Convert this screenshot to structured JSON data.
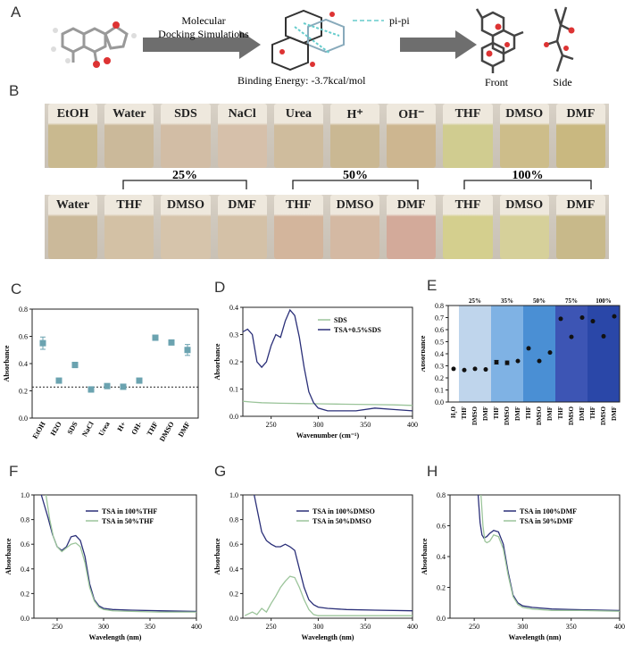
{
  "panels": {
    "A": "A",
    "B": "B",
    "C": "C",
    "D": "D",
    "E": "E",
    "F": "F",
    "G": "G",
    "H": "H"
  },
  "panelA": {
    "arrow1_line1": "Molecular",
    "arrow1_line2": "Docking Simulations",
    "pipi": "pi-pi",
    "binding": "Binding Energy:  -3.7kcal/mol",
    "front": "Front",
    "side": "Side"
  },
  "panelB": {
    "row1": [
      "EtOH",
      "Water",
      "SDS",
      "NaCl",
      "Urea",
      "H⁺",
      "OH⁻",
      "THF",
      "DMSO",
      "DMF"
    ],
    "row1_colors": [
      "#c9b98f",
      "#cbb99a",
      "#d2bda5",
      "#d6c0aa",
      "#cfbc9d",
      "#cab893",
      "#cdb690",
      "#d0cc90",
      "#cdbd8a",
      "#c9b880"
    ],
    "row2": [
      "Water",
      "THF",
      "DMSO",
      "DMF",
      "THF",
      "DMSO",
      "DMF",
      "THF",
      "DMSO",
      "DMF"
    ],
    "row2_colors": [
      "#cbb99a",
      "#d3c1a5",
      "#d6c4ab",
      "#d4c1a7",
      "#d3b59c",
      "#d4b9a3",
      "#d3aa9a",
      "#d4cf8e",
      "#d6d09a",
      "#c8b98a"
    ],
    "groups": [
      "25%",
      "50%",
      "100%"
    ]
  },
  "chart_data": [
    {
      "id": "C",
      "type": "scatter",
      "ylabel": "Absorbance",
      "ylim": [
        0,
        0.8
      ],
      "yticks": [
        "0.0",
        "0.2",
        "0.4",
        "0.6",
        "0.8"
      ],
      "categories": [
        "EtOH",
        "H2O",
        "SDS",
        "NaCl",
        "Urea",
        "H+",
        "OH-",
        "THF",
        "DMSO",
        "DMF"
      ],
      "values": [
        0.55,
        0.275,
        0.39,
        0.21,
        0.235,
        0.23,
        0.275,
        0.59,
        0.555,
        0.5
      ],
      "errors": [
        0.045,
        0.01,
        0.02,
        0.02,
        0.01,
        0.01,
        0.01,
        0.01,
        0.01,
        0.04
      ],
      "baseline": 0.228,
      "color": "#6ba3b0"
    },
    {
      "id": "D",
      "type": "line",
      "xlabel": "Wavenumber (cm⁻¹)",
      "ylabel": "Absorbance",
      "xlim": [
        220,
        400
      ],
      "ylim": [
        0,
        0.4
      ],
      "xticks": [
        "250",
        "300",
        "350",
        "400"
      ],
      "yticks": [
        "0.0",
        "0.1",
        "0.2",
        "0.3",
        "0.4"
      ],
      "series": [
        {
          "name": "SDS",
          "color": "#9bc49a",
          "x": [
            220,
            230,
            240,
            260,
            280,
            300,
            320,
            340,
            360,
            380,
            400
          ],
          "y": [
            0.055,
            0.052,
            0.05,
            0.048,
            0.047,
            0.046,
            0.045,
            0.044,
            0.043,
            0.042,
            0.04
          ]
        },
        {
          "name": "TSA+0.5%SDS",
          "color": "#2a2f78",
          "x": [
            220,
            225,
            230,
            235,
            240,
            245,
            250,
            255,
            260,
            265,
            270,
            275,
            280,
            285,
            290,
            295,
            300,
            310,
            320,
            340,
            360,
            380,
            400
          ],
          "y": [
            0.31,
            0.32,
            0.3,
            0.2,
            0.18,
            0.2,
            0.26,
            0.3,
            0.29,
            0.35,
            0.39,
            0.37,
            0.29,
            0.18,
            0.09,
            0.05,
            0.03,
            0.02,
            0.02,
            0.02,
            0.03,
            0.025,
            0.02
          ]
        }
      ]
    },
    {
      "id": "E",
      "type": "scatter",
      "ylabel": "Absorbance",
      "ylim": [
        0,
        0.8
      ],
      "yticks": [
        "0.0",
        "0.1",
        "0.2",
        "0.3",
        "0.4",
        "0.5",
        "0.6",
        "0.7",
        "0.8"
      ],
      "categories": [
        "H₂O",
        "THF",
        "DMSO",
        "DMF",
        "THF",
        "DMSO",
        "DMF",
        "THF",
        "DMSO",
        "DMF",
        "THF",
        "DMSO",
        "DMF",
        "THF",
        "DMSO",
        "DMF"
      ],
      "values": [
        0.275,
        0.265,
        0.275,
        0.27,
        0.33,
        0.325,
        0.34,
        0.445,
        0.34,
        0.41,
        0.69,
        0.54,
        0.7,
        0.67,
        0.545,
        0.71
      ],
      "errors": [
        0,
        0,
        0,
        0,
        0.015,
        0.015,
        0,
        0,
        0,
        0,
        0,
        0,
        0,
        0,
        0,
        0
      ],
      "groups": [
        "25%",
        "35%",
        "50%",
        "75%",
        "100%"
      ],
      "group_colors": [
        "#bfd5ec",
        "#7fb2e4",
        "#4a8fd4",
        "#3d55b4",
        "#2a47a8"
      ]
    },
    {
      "id": "F",
      "type": "line",
      "xlabel": "Wavelength (nm)",
      "ylabel": "Absorbance",
      "xlim": [
        225,
        400
      ],
      "ylim": [
        0,
        1.0
      ],
      "xticks": [
        "250",
        "300",
        "350",
        "400"
      ],
      "yticks": [
        "0.0",
        "0.2",
        "0.4",
        "0.6",
        "0.8",
        "1.0"
      ],
      "series": [
        {
          "name": "TSA in 100%THF",
          "color": "#2a2f78",
          "x": [
            233,
            240,
            245,
            250,
            255,
            260,
            265,
            270,
            275,
            280,
            285,
            290,
            295,
            300,
            310,
            330,
            360,
            400
          ],
          "y": [
            1.0,
            0.82,
            0.68,
            0.58,
            0.55,
            0.58,
            0.66,
            0.67,
            0.63,
            0.5,
            0.28,
            0.15,
            0.1,
            0.08,
            0.07,
            0.065,
            0.06,
            0.055
          ]
        },
        {
          "name": "TSA in 50%THF",
          "color": "#9bc49a",
          "x": [
            238,
            242,
            246,
            250,
            255,
            260,
            265,
            270,
            275,
            280,
            285,
            290,
            295,
            300,
            310,
            330,
            360,
            400
          ],
          "y": [
            1.0,
            0.8,
            0.66,
            0.58,
            0.54,
            0.57,
            0.6,
            0.61,
            0.58,
            0.45,
            0.25,
            0.14,
            0.09,
            0.07,
            0.06,
            0.055,
            0.05,
            0.05
          ]
        }
      ]
    },
    {
      "id": "G",
      "type": "line",
      "xlabel": "Wavelength (nm)",
      "ylabel": "Absorbance",
      "xlim": [
        220,
        400
      ],
      "ylim": [
        0,
        1.0
      ],
      "xticks": [
        "250",
        "300",
        "350",
        "400"
      ],
      "yticks": [
        "0.0",
        "0.2",
        "0.4",
        "0.6",
        "0.8",
        "1.0"
      ],
      "series": [
        {
          "name": "TSA in 100%DMSO",
          "color": "#2a2f78",
          "x": [
            232,
            236,
            240,
            245,
            250,
            255,
            260,
            265,
            270,
            275,
            280,
            285,
            290,
            295,
            300,
            310,
            330,
            360,
            400
          ],
          "y": [
            1.0,
            0.85,
            0.7,
            0.63,
            0.6,
            0.58,
            0.58,
            0.6,
            0.58,
            0.55,
            0.4,
            0.25,
            0.15,
            0.11,
            0.09,
            0.08,
            0.07,
            0.065,
            0.06
          ]
        },
        {
          "name": "TSA in 50%DMSO",
          "color": "#9bc49a",
          "x": [
            222,
            230,
            235,
            240,
            245,
            250,
            255,
            260,
            265,
            270,
            275,
            280,
            285,
            290,
            295,
            300,
            310,
            330,
            360,
            400
          ],
          "y": [
            0.02,
            0.05,
            0.03,
            0.08,
            0.05,
            0.12,
            0.18,
            0.25,
            0.3,
            0.34,
            0.33,
            0.25,
            0.15,
            0.07,
            0.03,
            0.02,
            0.02,
            0.02,
            0.02,
            0.02
          ]
        }
      ]
    },
    {
      "id": "H",
      "type": "line",
      "xlabel": "Wavelength (nm)",
      "ylabel": "Absorbance",
      "xlim": [
        225,
        400
      ],
      "ylim": [
        0,
        0.8
      ],
      "xticks": [
        "250",
        "300",
        "350",
        "400"
      ],
      "yticks": [
        "0.0",
        "0.2",
        "0.4",
        "0.6",
        "0.8"
      ],
      "series": [
        {
          "name": "TSA in 100%DMF",
          "color": "#2a2f78",
          "x": [
            254,
            256,
            258,
            260,
            263,
            266,
            270,
            275,
            280,
            285,
            290,
            295,
            300,
            310,
            330,
            360,
            400
          ],
          "y": [
            0.8,
            0.62,
            0.54,
            0.52,
            0.53,
            0.55,
            0.57,
            0.56,
            0.48,
            0.3,
            0.15,
            0.1,
            0.08,
            0.07,
            0.06,
            0.055,
            0.05
          ]
        },
        {
          "name": "TSA in 50%DMF",
          "color": "#9bc49a",
          "x": [
            257,
            259,
            261,
            263,
            266,
            270,
            275,
            280,
            285,
            290,
            295,
            300,
            310,
            330,
            360,
            400
          ],
          "y": [
            0.8,
            0.6,
            0.5,
            0.49,
            0.5,
            0.54,
            0.53,
            0.45,
            0.28,
            0.14,
            0.09,
            0.07,
            0.06,
            0.05,
            0.05,
            0.045
          ]
        }
      ]
    }
  ]
}
